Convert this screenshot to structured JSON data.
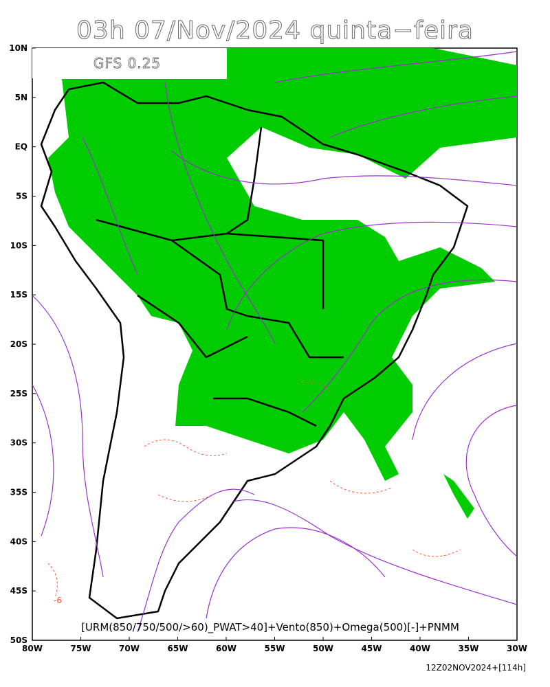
{
  "header": {
    "title": "03h 07/Nov/2024 quinta−feira"
  },
  "model_label": "GFS 0.25",
  "lat_labels": [
    "10N",
    "5N",
    "EQ",
    "5S",
    "10S",
    "15S",
    "20S",
    "25S",
    "30S",
    "35S",
    "40S",
    "45S",
    "50S"
  ],
  "lon_labels": [
    "80W",
    "75W",
    "70W",
    "65W",
    "60W",
    "55W",
    "50W",
    "45W",
    "40W",
    "35W",
    "30W"
  ],
  "contour_label": "-6",
  "legend": "[URM(850/750/500/>60)_PWAT>40]+Vento(850)+Omega(500)[-]+PNMM",
  "run": "12Z02NOV2024+[114h]"
}
